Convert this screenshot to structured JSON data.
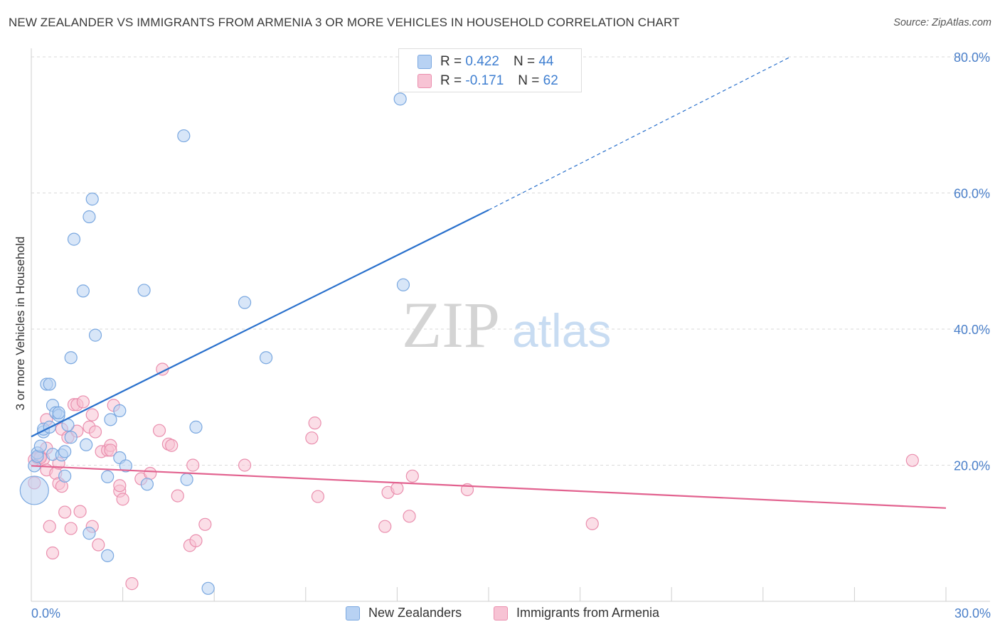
{
  "header": {
    "title": "NEW ZEALANDER VS IMMIGRANTS FROM ARMENIA 3 OR MORE VEHICLES IN HOUSEHOLD CORRELATION CHART",
    "source": "Source: ZipAtlas.com"
  },
  "legend": {
    "series1": {
      "r_label": "R =",
      "r_value": "0.422",
      "n_label": "N =",
      "n_value": "44"
    },
    "series2": {
      "r_label": "R =",
      "r_value": "-0.171",
      "n_label": "N =",
      "n_value": "62"
    }
  },
  "bottom_legend": {
    "series1": "New Zealanders",
    "series2": "Immigrants from Armenia"
  },
  "watermark": {
    "part1": "ZIP",
    "part2": "atlas"
  },
  "colors": {
    "blue_fill": "#b8d2f3",
    "blue_stroke": "#7aa8e0",
    "blue_line": "#2970cc",
    "pink_fill": "#f7c3d4",
    "pink_stroke": "#ea8fae",
    "pink_line": "#e2628f",
    "tick_label": "#4a7fc9",
    "grid": "#d9d9d9"
  },
  "chart_data": {
    "type": "scatter",
    "title": "NEW ZEALANDER VS IMMIGRANTS FROM ARMENIA 3 OR MORE VEHICLES IN HOUSEHOLD CORRELATION CHART",
    "xlabel": "",
    "ylabel": "3 or more Vehicles in Household",
    "xlim": [
      0,
      30
    ],
    "ylim": [
      0,
      80
    ],
    "x_tick_labels": [
      {
        "value": 0,
        "label": "0.0%"
      },
      {
        "value": 30,
        "label": "30.0%"
      }
    ],
    "y_tick_labels": [
      {
        "value": 20,
        "label": "20.0%"
      },
      {
        "value": 40,
        "label": "40.0%"
      },
      {
        "value": 60,
        "label": "60.0%"
      },
      {
        "value": 80,
        "label": "80.0%"
      }
    ],
    "series": [
      {
        "name": "New Zealanders",
        "color": "#7aa8e0",
        "r": 0.422,
        "n": 44,
        "trend": {
          "x_start": 0,
          "y_start": 24.2,
          "x_solid_end": 15,
          "y_solid_end": 57.5,
          "x_dash_end": 24.9,
          "y_dash_end": 80
        },
        "points": [
          [
            0.1,
            16.3,
            "L"
          ],
          [
            0.1,
            19.9
          ],
          [
            0.2,
            21.8
          ],
          [
            0.2,
            21.3
          ],
          [
            0.3,
            22.8
          ],
          [
            0.4,
            24.9
          ],
          [
            0.4,
            25.3
          ],
          [
            0.5,
            31.9
          ],
          [
            0.6,
            25.6
          ],
          [
            0.6,
            31.9
          ],
          [
            0.7,
            21.6
          ],
          [
            0.7,
            28.8
          ],
          [
            0.8,
            27.7
          ],
          [
            0.9,
            27.3
          ],
          [
            0.9,
            27.7
          ],
          [
            1.0,
            21.5
          ],
          [
            1.1,
            22.0
          ],
          [
            1.1,
            18.4
          ],
          [
            1.2,
            25.9
          ],
          [
            1.3,
            24.1
          ],
          [
            1.4,
            53.2
          ],
          [
            1.7,
            45.6
          ],
          [
            1.8,
            23.0
          ],
          [
            1.9,
            56.5
          ],
          [
            1.9,
            10.0
          ],
          [
            2.0,
            59.1
          ],
          [
            2.1,
            39.1
          ],
          [
            2.5,
            6.7
          ],
          [
            2.5,
            18.3
          ],
          [
            2.6,
            26.7
          ],
          [
            2.9,
            21.1
          ],
          [
            2.9,
            28.0
          ],
          [
            3.1,
            19.9
          ],
          [
            3.7,
            45.7
          ],
          [
            3.8,
            17.2
          ],
          [
            5.0,
            68.4
          ],
          [
            5.1,
            17.9
          ],
          [
            5.4,
            25.6
          ],
          [
            5.8,
            1.9
          ],
          [
            7.0,
            43.9
          ],
          [
            7.7,
            35.8
          ],
          [
            12.1,
            73.8
          ],
          [
            12.2,
            46.5
          ],
          [
            1.3,
            35.8
          ]
        ]
      },
      {
        "name": "Immigrants from Armenia",
        "color": "#ea8fae",
        "r": -0.171,
        "n": 62,
        "trend": {
          "x_start": 0,
          "y_start": 19.9,
          "x_end": 30,
          "y_end": 13.7
        },
        "points": [
          [
            0.1,
            17.4
          ],
          [
            0.1,
            20.8
          ],
          [
            0.2,
            21.1
          ],
          [
            0.2,
            21.1
          ],
          [
            0.3,
            21.3
          ],
          [
            0.4,
            20.9
          ],
          [
            0.5,
            26.7
          ],
          [
            0.5,
            19.3
          ],
          [
            0.5,
            22.5
          ],
          [
            0.6,
            11.0
          ],
          [
            0.7,
            7.1
          ],
          [
            0.8,
            18.8
          ],
          [
            0.9,
            17.3
          ],
          [
            0.9,
            20.3
          ],
          [
            1.0,
            16.9
          ],
          [
            1.0,
            25.3
          ],
          [
            1.1,
            13.1
          ],
          [
            1.2,
            24.1
          ],
          [
            1.3,
            10.7
          ],
          [
            1.4,
            28.9
          ],
          [
            1.5,
            25.0
          ],
          [
            1.5,
            28.9
          ],
          [
            1.6,
            13.2
          ],
          [
            1.7,
            29.3
          ],
          [
            1.9,
            25.6
          ],
          [
            2.0,
            27.4
          ],
          [
            2.0,
            11.0
          ],
          [
            2.1,
            24.9
          ],
          [
            2.2,
            8.3
          ],
          [
            2.3,
            22.0
          ],
          [
            2.5,
            22.2
          ],
          [
            2.6,
            22.9
          ],
          [
            2.6,
            22.2
          ],
          [
            2.7,
            28.8
          ],
          [
            2.9,
            16.2
          ],
          [
            2.9,
            17.0
          ],
          [
            3.0,
            15.0
          ],
          [
            3.3,
            2.6
          ],
          [
            3.6,
            18.0
          ],
          [
            3.9,
            18.8
          ],
          [
            4.2,
            25.1
          ],
          [
            4.3,
            34.1
          ],
          [
            4.5,
            23.1
          ],
          [
            4.6,
            22.9
          ],
          [
            4.8,
            15.5
          ],
          [
            5.2,
            8.2
          ],
          [
            5.3,
            20.0
          ],
          [
            5.4,
            8.9
          ],
          [
            5.7,
            11.3
          ],
          [
            7.0,
            20.0
          ],
          [
            9.2,
            24.0
          ],
          [
            9.3,
            26.2
          ],
          [
            9.4,
            15.4
          ],
          [
            11.6,
            11.0
          ],
          [
            11.7,
            16.0
          ],
          [
            12.0,
            16.6
          ],
          [
            12.4,
            12.5
          ],
          [
            12.5,
            18.4
          ],
          [
            14.3,
            16.4
          ],
          [
            18.4,
            11.4
          ],
          [
            28.9,
            20.7
          ],
          [
            0.3,
            21.1
          ]
        ]
      }
    ]
  }
}
